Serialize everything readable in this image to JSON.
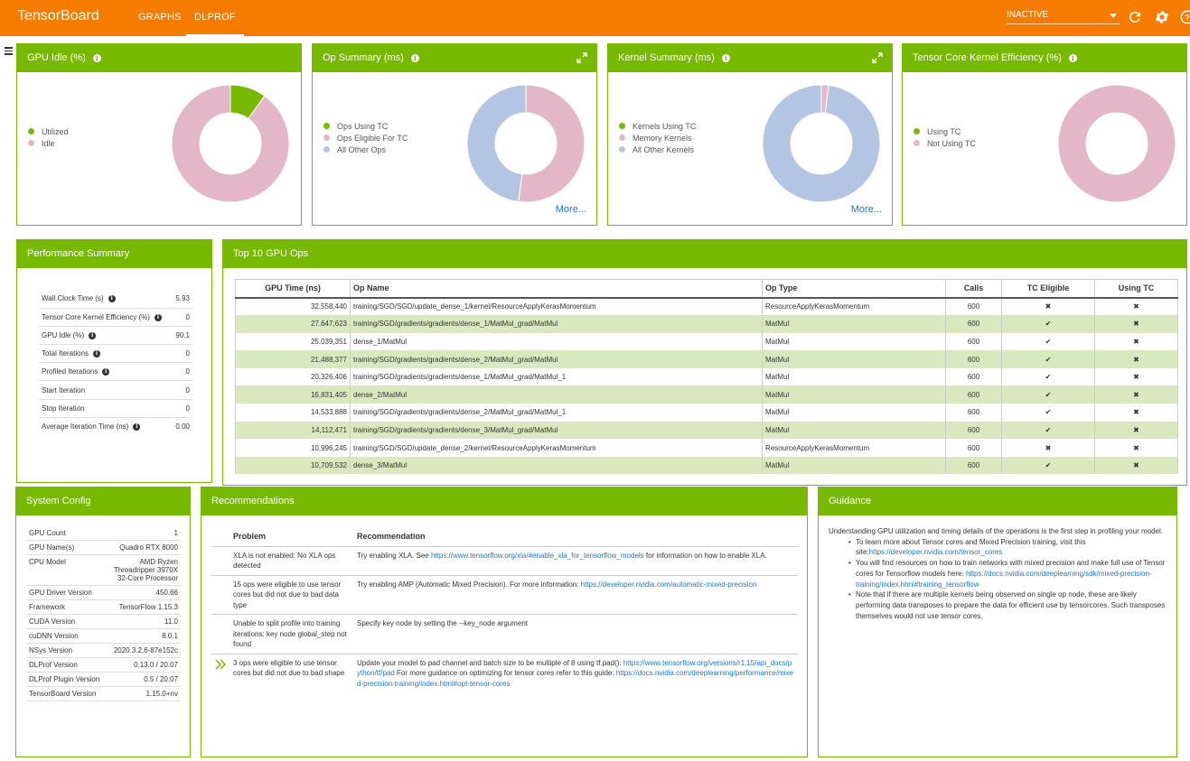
{
  "header": {
    "brand": "TensorBoard",
    "tabs": [
      {
        "label": "GRAPHS"
      },
      {
        "label": "DLPROF"
      }
    ],
    "run_selector": "INACTIVE",
    "colors": {
      "bar": "#f57c00",
      "accent": "#76b900"
    }
  },
  "donuts": [
    {
      "title": "GPU Idle (%)",
      "legend": [
        "Utilized",
        "Idle"
      ],
      "colors": [
        "#76b900",
        "#e3b7c8"
      ],
      "values": [
        9.9,
        90.1
      ]
    },
    {
      "title": "Op Summary (ms)",
      "legend": [
        "Ops Using TC",
        "Ops Eligible For TC",
        "All Other Ops"
      ],
      "colors": [
        "#76b900",
        "#e3b7c8",
        "#b4c5e4"
      ],
      "values": [
        0,
        52,
        48
      ],
      "more": "More..."
    },
    {
      "title": "Kernel Summary (ms)",
      "legend": [
        "Kernels Using TC",
        "Memory Kernels",
        "All Other Kernels"
      ],
      "colors": [
        "#76b900",
        "#e3b7c8",
        "#b4c5e4"
      ],
      "values": [
        0,
        2,
        98
      ],
      "more": "More..."
    },
    {
      "title": "Tensor Core Kernel Efficiency (%)",
      "legend": [
        "Using TC",
        "Not Using TC"
      ],
      "colors": [
        "#76b900",
        "#e3b7c8"
      ],
      "values": [
        0,
        100
      ]
    }
  ],
  "performance": {
    "title": "Performance Summary",
    "rows": [
      {
        "label": "Wall Clock Time (s)",
        "value": "5.93"
      },
      {
        "label": "Tensor Core Kernel Efficiency (%)",
        "value": "0"
      },
      {
        "label": "GPU Idle (%)",
        "value": "90.1"
      },
      {
        "label": "Total Iterations",
        "value": "0"
      },
      {
        "label": "Profiled Iterations",
        "value": "0"
      },
      {
        "label": "Start Iteration",
        "value": "0"
      },
      {
        "label": "Stop Iteration",
        "value": "0"
      },
      {
        "label": "Average Iteration Time (ns)",
        "value": "0.00"
      }
    ]
  },
  "top_ops": {
    "title": "Top 10 GPU Ops",
    "columns": [
      "GPU Time (ns)",
      "Op Name",
      "Op Type",
      "Calls",
      "TC Eligible",
      "Using TC"
    ],
    "rows": [
      [
        "32,558,440",
        "training/SGD/SGD/update_dense_1/kernel/ResourceApplyKerasMomentum",
        "ResourceApplyKerasMomentum",
        "600",
        "✖",
        "✖"
      ],
      [
        "27,647,623",
        "training/SGD/gradients/gradients/dense_1/MatMul_grad/MatMul",
        "MatMul",
        "600",
        "✔",
        "✖"
      ],
      [
        "25,039,351",
        "dense_1/MatMul",
        "MatMul",
        "600",
        "✔",
        "✖"
      ],
      [
        "21,488,377",
        "training/SGD/gradients/gradients/dense_2/MatMul_grad/MatMul",
        "MatMul",
        "600",
        "✔",
        "✖"
      ],
      [
        "20,326,406",
        "training/SGD/gradients/gradients/dense_1/MatMul_grad/MatMul_1",
        "MatMul",
        "600",
        "✔",
        "✖"
      ],
      [
        "16,831,405",
        "dense_2/MatMul",
        "MatMul",
        "600",
        "✔",
        "✖"
      ],
      [
        "14,533,888",
        "training/SGD/gradients/gradients/dense_2/MatMul_grad/MatMul_1",
        "MatMul",
        "600",
        "✔",
        "✖"
      ],
      [
        "14,112,471",
        "training/SGD/gradients/gradients/dense_3/MatMul_grad/MatMul",
        "MatMul",
        "600",
        "✔",
        "✖"
      ],
      [
        "10,996,245",
        "training/SGD/SGD/update_dense_2/kernel/ResourceApplyKerasMomentum",
        "ResourceApplyKerasMomentum",
        "600",
        "✖",
        "✖"
      ],
      [
        "10,709,532",
        "dense_3/MatMul",
        "MatMul",
        "600",
        "✔",
        "✖"
      ]
    ]
  },
  "system": {
    "title": "System Config",
    "rows": [
      {
        "label": "GPU Count",
        "value": "1"
      },
      {
        "label": "GPU Name(s)",
        "value": "Quadro RTX 8000"
      },
      {
        "label": "CPU Model",
        "value": "AMD Ryzen Threadripper 3970X 32-Core Processor"
      },
      {
        "label": "GPU Driver Version",
        "value": "450.66"
      },
      {
        "label": "Framework",
        "value": "TensorFlow 1.15.3"
      },
      {
        "label": "CUDA Version",
        "value": "11.0"
      },
      {
        "label": "cuDNN Version",
        "value": "8.0.1"
      },
      {
        "label": "NSys Version",
        "value": "2020.3.2.6-87e152c"
      },
      {
        "label": "DLProf Version",
        "value": "0.13.0 / 20.07"
      },
      {
        "label": "DLProf Plugin Version",
        "value": "0.5 / 20.07"
      },
      {
        "label": "TensorBoard Version",
        "value": "1.15.0+nv"
      }
    ]
  },
  "recommendations": {
    "title": "Recommendations",
    "col_problem": "Problem",
    "col_recommendation": "Recommendation",
    "rows": [
      {
        "problem": "XLA is not enabled: No XLA ops detected",
        "pre": "Try enabling XLA. See ",
        "link": "https://www.tensorflow.org/xla/#enable_xla_for_tensorflow_models",
        "post": " for information on how to enable XLA.",
        "link2": "",
        "post2": ""
      },
      {
        "problem": "15 ops were eligible to use tensor cores but did not due to bad data type",
        "pre": "Try enabling AMP (Automatic Mixed Precision). For more information: ",
        "link": "https://developer.nvidia.com/automatic-mixed-precision",
        "post": "",
        "link2": "",
        "post2": ""
      },
      {
        "problem": "Unable to split profile into training iterations: key node global_step not found",
        "pre": "Specify key node by setting the --key_node argument",
        "link": "",
        "post": "",
        "link2": "",
        "post2": ""
      },
      {
        "problem": "3 ops were eligible to use tensor cores but did not due to bad shape",
        "pre": "Update your model to pad channel and batch size to be multiple of 8 using tf.pad(): ",
        "link": "https://www.tensorflow.org/versions/r1.15/api_docs/python/tf/pad",
        "post": " For more guidance on optimizing for tensor cores refer to this guide: ",
        "link2": "https://docs.nvidia.com/deeplearning/performance/mixed-precision-training/index.html#opt-tensor-cores",
        "post2": ""
      }
    ]
  },
  "guidance": {
    "title": "Guidance",
    "intro": "Understanding GPU utilization and timing details of the operations is the first step in profiling your model.",
    "b1_pre": "To learn more about Tensor cores and Mixed Precision training, visit this site:",
    "b1_link": "https://developer.nvidia.com/tensor_cores",
    "b2_pre": "You will find resources on how to train networks with mixed precision and make full use of Tensor cores for Tensorflow models here: ",
    "b2_link": "https://docs.nvidia.com/deeplearning/sdk/mixed-precision-training/index.html#training_tensorflow",
    "b3": "Note that if there are multiple kernels being observed on single op node, these are likely performing data transposes to prepare the data for efficient use by tensorcores. Such transposes themselves would not use tensor cores."
  }
}
